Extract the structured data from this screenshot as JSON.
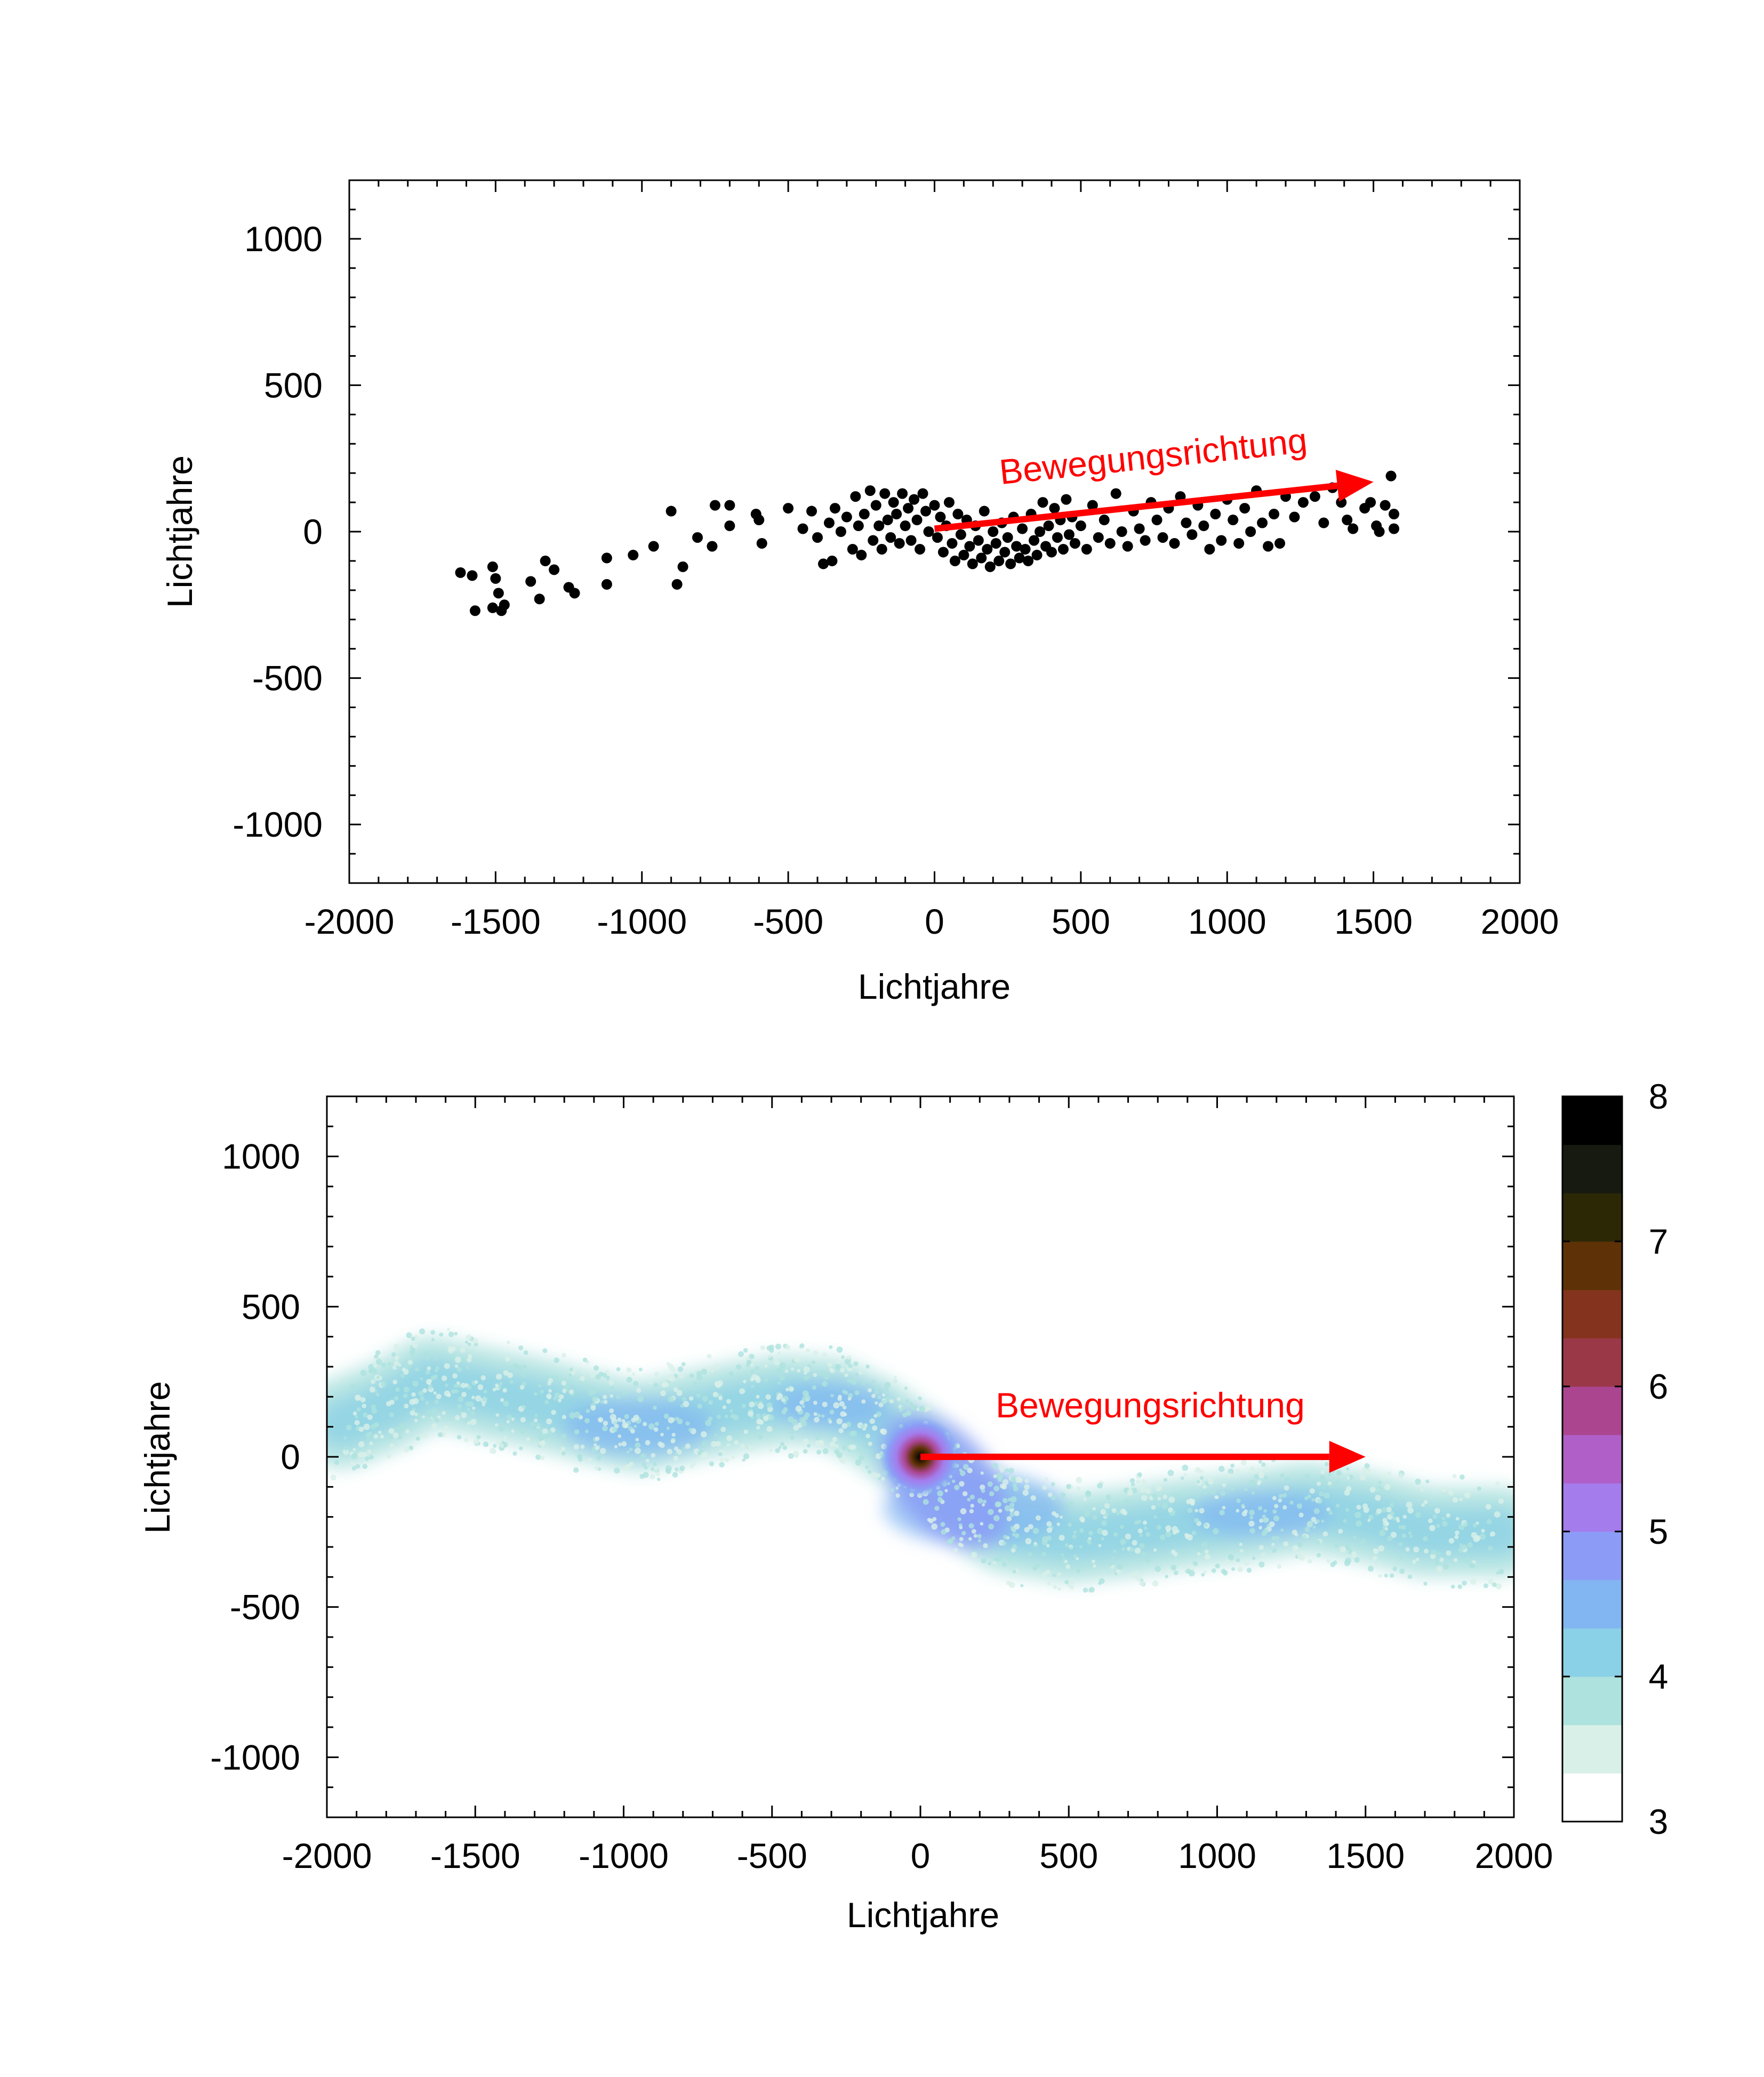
{
  "chart_data": [
    {
      "type": "scatter",
      "xlabel": "Lichtjahre",
      "ylabel": "Lichtjahre",
      "xlim": [
        -2000,
        2000
      ],
      "ylim": [
        -1200,
        1200
      ],
      "x_ticks": [
        -2000,
        -1500,
        -1000,
        -500,
        0,
        500,
        1000,
        1500,
        2000
      ],
      "y_ticks": [
        -1000,
        -500,
        0,
        500,
        1000
      ],
      "grid": false,
      "marker_color": "#000000",
      "annotation": {
        "text": "Bewegungsrichtung",
        "color": "#ff0000",
        "arrow_from": [
          0,
          10
        ],
        "arrow_to": [
          1500,
          170
        ]
      },
      "points": [
        [
          -1620,
          -140
        ],
        [
          -1580,
          -150
        ],
        [
          -1570,
          -270
        ],
        [
          -1510,
          -120
        ],
        [
          -1510,
          -260
        ],
        [
          -1500,
          -160
        ],
        [
          -1490,
          -210
        ],
        [
          -1480,
          -270
        ],
        [
          -1470,
          -250
        ],
        [
          -1380,
          -170
        ],
        [
          -1350,
          -230
        ],
        [
          -1330,
          -100
        ],
        [
          -1300,
          -130
        ],
        [
          -1250,
          -190
        ],
        [
          -1230,
          -210
        ],
        [
          -1120,
          -90
        ],
        [
          -1120,
          -180
        ],
        [
          -1030,
          -80
        ],
        [
          -960,
          -50
        ],
        [
          -900,
          70
        ],
        [
          -880,
          -180
        ],
        [
          -860,
          -120
        ],
        [
          -810,
          -20
        ],
        [
          -760,
          -50
        ],
        [
          -750,
          90
        ],
        [
          -700,
          90
        ],
        [
          -700,
          20
        ],
        [
          -610,
          60
        ],
        [
          -600,
          40
        ],
        [
          -590,
          -40
        ],
        [
          -500,
          80
        ],
        [
          -450,
          10
        ],
        [
          -420,
          70
        ],
        [
          -400,
          -20
        ],
        [
          -380,
          -110
        ],
        [
          -360,
          30
        ],
        [
          -350,
          -100
        ],
        [
          -340,
          80
        ],
        [
          -320,
          0
        ],
        [
          -300,
          50
        ],
        [
          -280,
          -60
        ],
        [
          -270,
          120
        ],
        [
          -260,
          20
        ],
        [
          -250,
          -80
        ],
        [
          -240,
          60
        ],
        [
          -220,
          140
        ],
        [
          -210,
          -30
        ],
        [
          -200,
          90
        ],
        [
          -190,
          20
        ],
        [
          -180,
          -60
        ],
        [
          -170,
          130
        ],
        [
          -160,
          40
        ],
        [
          -150,
          -20
        ],
        [
          -140,
          100
        ],
        [
          -130,
          60
        ],
        [
          -120,
          -40
        ],
        [
          -110,
          130
        ],
        [
          -100,
          20
        ],
        [
          -90,
          80
        ],
        [
          -80,
          -30
        ],
        [
          -70,
          110
        ],
        [
          -60,
          40
        ],
        [
          -50,
          -60
        ],
        [
          -40,
          130
        ],
        [
          -30,
          70
        ],
        [
          -20,
          0
        ],
        [
          0,
          90
        ],
        [
          10,
          -20
        ],
        [
          20,
          50
        ],
        [
          30,
          -70
        ],
        [
          40,
          20
        ],
        [
          50,
          100
        ],
        [
          60,
          -40
        ],
        [
          70,
          -100
        ],
        [
          80,
          60
        ],
        [
          90,
          -10
        ],
        [
          100,
          -80
        ],
        [
          110,
          40
        ],
        [
          120,
          -50
        ],
        [
          130,
          -110
        ],
        [
          140,
          20
        ],
        [
          150,
          -30
        ],
        [
          160,
          -90
        ],
        [
          170,
          70
        ],
        [
          180,
          -60
        ],
        [
          190,
          -120
        ],
        [
          200,
          0
        ],
        [
          210,
          -40
        ],
        [
          220,
          -100
        ],
        [
          230,
          30
        ],
        [
          240,
          -70
        ],
        [
          250,
          -20
        ],
        [
          260,
          -110
        ],
        [
          270,
          50
        ],
        [
          280,
          -50
        ],
        [
          290,
          -90
        ],
        [
          300,
          10
        ],
        [
          310,
          -60
        ],
        [
          320,
          -100
        ],
        [
          330,
          60
        ],
        [
          340,
          -30
        ],
        [
          350,
          -80
        ],
        [
          360,
          0
        ],
        [
          370,
          100
        ],
        [
          380,
          -50
        ],
        [
          390,
          20
        ],
        [
          400,
          -70
        ],
        [
          410,
          80
        ],
        [
          420,
          -20
        ],
        [
          430,
          40
        ],
        [
          440,
          -60
        ],
        [
          450,
          110
        ],
        [
          460,
          -10
        ],
        [
          470,
          50
        ],
        [
          480,
          -40
        ],
        [
          500,
          20
        ],
        [
          520,
          -60
        ],
        [
          540,
          90
        ],
        [
          560,
          -20
        ],
        [
          580,
          40
        ],
        [
          600,
          -40
        ],
        [
          620,
          130
        ],
        [
          640,
          0
        ],
        [
          660,
          -50
        ],
        [
          680,
          70
        ],
        [
          700,
          10
        ],
        [
          720,
          -30
        ],
        [
          740,
          100
        ],
        [
          760,
          40
        ],
        [
          780,
          -20
        ],
        [
          800,
          80
        ],
        [
          820,
          -40
        ],
        [
          840,
          120
        ],
        [
          860,
          30
        ],
        [
          880,
          -10
        ],
        [
          900,
          90
        ],
        [
          920,
          20
        ],
        [
          940,
          -60
        ],
        [
          960,
          60
        ],
        [
          980,
          -30
        ],
        [
          1000,
          110
        ],
        [
          1020,
          40
        ],
        [
          1040,
          -40
        ],
        [
          1060,
          80
        ],
        [
          1080,
          0
        ],
        [
          1100,
          140
        ],
        [
          1120,
          30
        ],
        [
          1140,
          -50
        ],
        [
          1160,
          60
        ],
        [
          1180,
          -40
        ],
        [
          1200,
          120
        ],
        [
          1230,
          50
        ],
        [
          1260,
          100
        ],
        [
          1300,
          120
        ],
        [
          1330,
          30
        ],
        [
          1360,
          150
        ],
        [
          1390,
          100
        ],
        [
          1410,
          40
        ],
        [
          1430,
          10
        ],
        [
          1470,
          80
        ],
        [
          1490,
          100
        ],
        [
          1510,
          20
        ],
        [
          1520,
          0
        ],
        [
          1540,
          90
        ],
        [
          1560,
          190
        ],
        [
          1570,
          60
        ],
        [
          1570,
          10
        ]
      ]
    },
    {
      "type": "heatmap",
      "xlabel": "Lichtjahre",
      "ylabel": "Lichtjahre",
      "xlim": [
        -2000,
        2000
      ],
      "ylim": [
        -1200,
        1200
      ],
      "x_ticks": [
        -2000,
        -1500,
        -1000,
        -500,
        0,
        500,
        1000,
        1500,
        2000
      ],
      "y_ticks": [
        -1000,
        -500,
        0,
        500,
        1000
      ],
      "grid": false,
      "colorbar": {
        "range": [
          3,
          8
        ],
        "ticks": [
          3,
          4,
          5,
          6,
          7,
          8
        ],
        "colors": [
          "#ffffff",
          "#d9f0e8",
          "#aee2de",
          "#8ad0e6",
          "#82b6f2",
          "#8c9cf6",
          "#a47cec",
          "#b05ec8",
          "#ab4590",
          "#9a3848",
          "#84341e",
          "#5e3206",
          "#2c2806",
          "#161a10",
          "#000000"
        ]
      },
      "stream_centerline": [
        [
          -1950,
          110
        ],
        [
          -1800,
          170
        ],
        [
          -1650,
          250
        ],
        [
          -1500,
          220
        ],
        [
          -1300,
          180
        ],
        [
          -1100,
          130
        ],
        [
          -950,
          100
        ],
        [
          -800,
          130
        ],
        [
          -600,
          170
        ],
        [
          -450,
          190
        ],
        [
          -300,
          180
        ],
        [
          -150,
          110
        ],
        [
          0,
          0
        ],
        [
          150,
          -150
        ],
        [
          300,
          -240
        ],
        [
          500,
          -270
        ],
        [
          700,
          -250
        ],
        [
          900,
          -220
        ],
        [
          1100,
          -200
        ],
        [
          1300,
          -170
        ],
        [
          1500,
          -200
        ],
        [
          1700,
          -250
        ],
        [
          1950,
          -250
        ]
      ],
      "annotation": {
        "text": "Bewegungsrichtung",
        "color": "#ff0000",
        "arrow_from": [
          0,
          0
        ],
        "arrow_to": [
          1500,
          0
        ]
      }
    }
  ]
}
